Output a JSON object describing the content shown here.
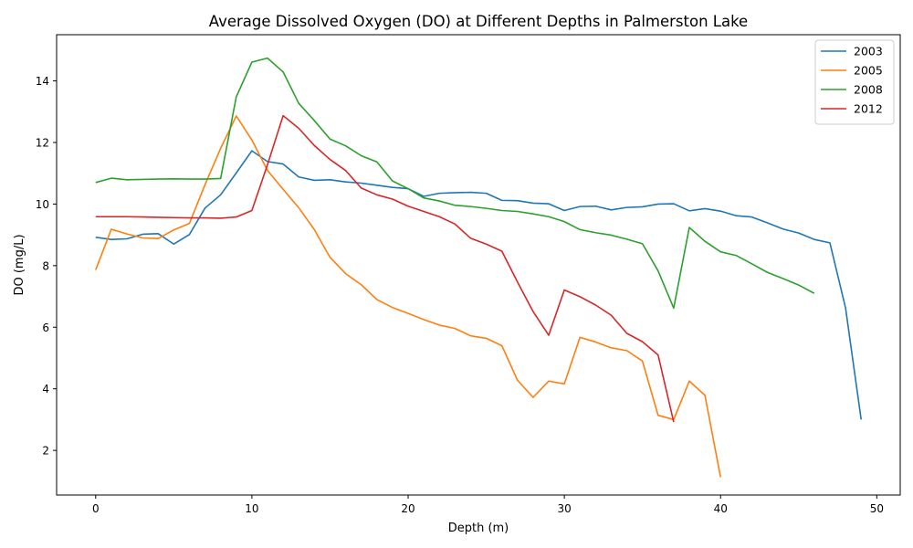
{
  "chart_data": {
    "type": "line",
    "title": "Average Dissolved Oxygen (DO) at Different Depths in Palmerston Lake",
    "xlabel": "Depth (m)",
    "ylabel": "DO (mg/L)",
    "xlim": [
      -2.5,
      51.5
    ],
    "ylim": [
      0.55,
      15.5
    ],
    "xticks": [
      0,
      10,
      20,
      30,
      40,
      50
    ],
    "yticks": [
      2,
      4,
      6,
      8,
      10,
      12,
      14
    ],
    "grid": false,
    "legend_position": "top-right",
    "series": [
      {
        "name": "2003",
        "color": "#1f77b4",
        "x": [
          0,
          1,
          2,
          3,
          4,
          5,
          6,
          7,
          8,
          9,
          10,
          11,
          12,
          13,
          14,
          15,
          16,
          17,
          18,
          19,
          20,
          21,
          22,
          23,
          24,
          25,
          26,
          27,
          28,
          29,
          30,
          31,
          32,
          33,
          34,
          35,
          36,
          37,
          38,
          39,
          40,
          41,
          42,
          43,
          44,
          45,
          46,
          47,
          48,
          49
        ],
        "y": [
          8.92,
          8.85,
          8.87,
          9.02,
          9.04,
          8.7,
          9.01,
          9.87,
          10.3,
          11.01,
          11.73,
          11.38,
          11.3,
          10.88,
          10.77,
          10.79,
          10.72,
          10.68,
          10.61,
          10.54,
          10.5,
          10.25,
          10.35,
          10.37,
          10.38,
          10.35,
          10.12,
          10.11,
          10.03,
          10.01,
          9.79,
          9.92,
          9.93,
          9.81,
          9.89,
          9.91,
          10.0,
          10.01,
          9.78,
          9.85,
          9.77,
          9.62,
          9.58,
          9.39,
          9.19,
          9.06,
          8.85,
          8.74,
          6.63,
          3.0
        ]
      },
      {
        "name": "2005",
        "color": "#ff7f0e",
        "x": [
          0,
          1,
          2,
          3,
          4,
          5,
          6,
          7,
          8,
          9,
          10,
          11,
          12,
          13,
          14,
          15,
          16,
          17,
          18,
          19,
          20,
          21,
          22,
          23,
          24,
          25,
          26,
          27,
          28,
          29,
          30,
          31,
          32,
          33,
          34,
          35,
          36,
          37,
          38,
          39,
          40
        ],
        "y": [
          7.86,
          9.18,
          9.03,
          8.9,
          8.88,
          9.16,
          9.37,
          10.63,
          11.81,
          12.86,
          12.08,
          11.09,
          10.48,
          9.88,
          9.17,
          8.27,
          7.74,
          7.38,
          6.9,
          6.64,
          6.45,
          6.25,
          6.07,
          5.96,
          5.72,
          5.64,
          5.4,
          4.28,
          3.72,
          4.25,
          4.16,
          5.67,
          5.52,
          5.33,
          5.24,
          4.9,
          3.14,
          3.0,
          4.25,
          3.79,
          1.13
        ]
      },
      {
        "name": "2008",
        "color": "#2ca02c",
        "x": [
          0,
          1,
          2,
          3,
          4,
          5,
          6,
          7,
          8,
          9,
          10,
          11,
          12,
          13,
          14,
          15,
          16,
          17,
          18,
          19,
          20,
          21,
          22,
          23,
          24,
          25,
          26,
          27,
          28,
          29,
          30,
          31,
          32,
          33,
          34,
          35,
          36,
          37,
          38,
          39,
          40,
          41,
          42,
          43,
          44,
          45,
          46
        ],
        "y": [
          10.7,
          10.84,
          10.79,
          10.8,
          10.81,
          10.82,
          10.81,
          10.81,
          10.83,
          13.48,
          14.61,
          14.74,
          14.29,
          13.27,
          12.71,
          12.11,
          11.89,
          11.57,
          11.37,
          10.75,
          10.5,
          10.2,
          10.1,
          9.96,
          9.92,
          9.86,
          9.79,
          9.76,
          9.68,
          9.59,
          9.43,
          9.17,
          9.07,
          8.99,
          8.86,
          8.71,
          7.83,
          6.62,
          9.24,
          8.79,
          8.45,
          8.33,
          8.06,
          7.78,
          7.58,
          7.37,
          7.1
        ]
      },
      {
        "name": "2012",
        "color": "#d62728",
        "x": [
          0,
          1,
          2,
          3,
          4,
          5,
          6,
          7,
          8,
          9,
          10,
          11,
          12,
          13,
          14,
          15,
          16,
          17,
          18,
          19,
          20,
          21,
          22,
          23,
          24,
          25,
          26,
          27,
          28,
          29,
          30,
          31,
          32,
          33,
          34,
          35,
          36,
          37
        ],
        "y": [
          9.59,
          9.59,
          9.59,
          9.58,
          9.57,
          9.56,
          9.55,
          9.55,
          9.54,
          9.58,
          9.79,
          11.28,
          12.87,
          12.46,
          11.9,
          11.45,
          11.09,
          10.52,
          10.3,
          10.16,
          9.93,
          9.76,
          9.59,
          9.35,
          8.89,
          8.7,
          8.47,
          7.47,
          6.51,
          5.74,
          7.21,
          6.99,
          6.72,
          6.39,
          5.8,
          5.53,
          5.1,
          2.92
        ]
      }
    ]
  }
}
